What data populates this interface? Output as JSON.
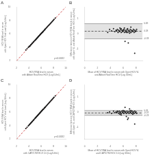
{
  "chart_data": [
    {
      "type": "scatter",
      "title": "A",
      "xlabel": "HCV RNA level in serum\nwith Abbott RealTime HCV (Log IU/mL)",
      "ylabel": "HCV RNA level in serum\nwith Xpert HCV Viral Load (Log IU/mL)",
      "xlim": [
        2,
        10
      ],
      "ylim": [
        2,
        10
      ],
      "xticks": [
        2,
        4,
        6,
        8,
        10
      ],
      "yticks": [
        2,
        4,
        6,
        8,
        10
      ],
      "grid": false,
      "annotation": "p<0.0001",
      "series": [
        {
          "type": "scatter",
          "color": "#1a1a1a",
          "marker": "circle",
          "x": [
            3.5,
            3.7,
            3.9,
            4.0,
            4.1,
            4.15,
            4.2,
            4.3,
            4.35,
            4.4,
            4.5,
            4.55,
            4.6,
            4.7,
            4.75,
            4.8,
            4.9,
            5.0,
            5.05,
            5.1,
            5.15,
            5.2,
            5.25,
            5.3,
            5.35,
            5.4,
            5.45,
            5.5,
            5.55,
            5.6,
            5.65,
            5.7,
            5.75,
            5.8,
            5.85,
            5.9,
            5.95,
            6.0,
            6.05,
            6.1,
            6.15,
            6.2,
            6.25,
            6.3,
            6.35,
            6.4,
            6.5,
            6.55,
            6.6,
            6.65,
            6.7,
            6.8,
            6.9,
            7.0,
            7.1,
            7.2,
            7.3,
            7.4,
            7.5,
            7.6,
            7.7,
            7.8,
            7.9,
            8.0,
            8.1,
            8.3
          ],
          "values": [
            3.6,
            3.8,
            4.0,
            4.1,
            4.2,
            4.15,
            4.25,
            4.35,
            4.4,
            4.45,
            4.55,
            4.6,
            4.65,
            4.75,
            4.8,
            4.85,
            4.95,
            5.05,
            5.1,
            5.15,
            5.2,
            5.25,
            5.3,
            5.35,
            5.4,
            5.45,
            5.5,
            5.55,
            5.6,
            5.65,
            5.7,
            5.75,
            5.8,
            5.85,
            5.9,
            5.95,
            6.0,
            6.05,
            6.1,
            6.15,
            6.2,
            6.25,
            6.3,
            6.35,
            6.4,
            6.45,
            6.55,
            6.6,
            6.65,
            6.7,
            6.75,
            6.85,
            6.95,
            7.05,
            7.15,
            7.25,
            7.35,
            7.45,
            7.55,
            7.65,
            7.75,
            7.85,
            7.95,
            8.05,
            8.15,
            8.35
          ]
        },
        {
          "type": "line",
          "color": "#cc3333",
          "line_style": "dashed",
          "x": [
            2,
            10
          ],
          "values": [
            2,
            10
          ]
        }
      ]
    },
    {
      "type": "scatter",
      "title": "B",
      "xlabel": "Mean of HCV RNA level in serum with Xpert HCV VL\nand Abbott RealTime HCV (Log IU/mL)",
      "ylabel": "Difference between HCV RNA levels in serum\nwith Xpert VL and Abbott RealTime HCV (Log IU/mL)",
      "xlim": [
        0,
        9
      ],
      "ylim": [
        -1.8,
        1.8
      ],
      "xticks": [
        0,
        2,
        4,
        6,
        8
      ],
      "yticks": [
        -1,
        0,
        1
      ],
      "grid": false,
      "band": {
        "values": [
          -0.33,
          0.69
        ],
        "color": "#cccccc"
      },
      "hlines": [
        {
          "value": 0.69,
          "label": "0.69",
          "color": "#000000",
          "line_style": "dotted"
        },
        {
          "value": 0.18,
          "label": "0.18",
          "color": "#000000",
          "line_style": "dashed"
        },
        {
          "value": -0.33,
          "label": "-0.33",
          "color": "#000000",
          "line_style": "dotted"
        }
      ],
      "series": [
        {
          "type": "scatter",
          "color": "#1a1a1a",
          "marker": "circle",
          "x": [
            3.6,
            3.9,
            4.2,
            4.5,
            4.7,
            4.9,
            5.0,
            5.1,
            5.2,
            5.3,
            5.4,
            5.5,
            5.6,
            5.7,
            5.8,
            5.9,
            6.0,
            6.1,
            6.2,
            6.3,
            6.4,
            6.5,
            6.6,
            6.7,
            6.8,
            6.9,
            7.0,
            7.1,
            7.2,
            7.3,
            7.4,
            7.5,
            7.6,
            7.7,
            7.8,
            7.9,
            8.0,
            8.1,
            5.5,
            5.7,
            6.0,
            6.2,
            6.5,
            6.7,
            7.0,
            7.2,
            7.5,
            7.8,
            6.3,
            6.8
          ],
          "values": [
            0.1,
            0.3,
            0.2,
            0.35,
            0.15,
            0.25,
            0.2,
            0.3,
            0.1,
            0.25,
            0.15,
            0.2,
            0.3,
            0.1,
            0.25,
            0.15,
            0.2,
            0.3,
            0.1,
            0.25,
            0.15,
            0.2,
            0.3,
            0.1,
            0.25,
            0.15,
            0.2,
            0.3,
            0.1,
            0.25,
            0.15,
            0.2,
            0.3,
            0.1,
            0.25,
            0.15,
            0.2,
            0.3,
            0.4,
            0.35,
            0.25,
            0.4,
            0.1,
            0.35,
            0.05,
            0.45,
            0.2,
            -1.3,
            -0.5,
            -0.6
          ]
        }
      ]
    },
    {
      "type": "scatter",
      "title": "C",
      "xlabel": "HCV RNA level in serum\nwith CAP/CTM HCV 2.0 (Log IU/mL)",
      "ylabel": "HCV RNA level in serum\nwith Xpert HCV Viral Load (Log IU/mL)",
      "xlim": [
        2,
        10
      ],
      "ylim": [
        2,
        10
      ],
      "xticks": [
        2,
        4,
        6,
        8,
        10
      ],
      "yticks": [
        2,
        4,
        6,
        8,
        10
      ],
      "grid": false,
      "annotation": "p<0.0001",
      "series": [
        {
          "type": "scatter",
          "color": "#1a1a1a",
          "marker": "circle",
          "x": [
            3.5,
            3.7,
            3.9,
            4.0,
            4.1,
            4.15,
            4.2,
            4.3,
            4.35,
            4.4,
            4.5,
            4.55,
            4.6,
            4.7,
            4.75,
            4.8,
            4.9,
            5.0,
            5.05,
            5.1,
            5.15,
            5.2,
            5.25,
            5.3,
            5.35,
            5.4,
            5.45,
            5.5,
            5.55,
            5.6,
            5.65,
            5.7,
            5.75,
            5.8,
            5.85,
            5.9,
            5.95,
            6.0,
            6.05,
            6.1,
            6.15,
            6.2,
            6.25,
            6.3,
            6.35,
            6.4,
            6.5,
            6.55,
            6.6,
            6.65,
            6.7,
            6.8,
            6.9,
            7.0,
            7.1,
            7.2,
            7.3,
            7.4,
            7.5,
            7.6,
            7.7,
            7.8,
            7.9,
            8.0,
            8.1,
            8.3
          ],
          "values": [
            3.55,
            3.75,
            3.95,
            4.05,
            4.15,
            4.2,
            4.25,
            4.35,
            4.4,
            4.45,
            4.55,
            4.6,
            4.65,
            4.75,
            4.8,
            4.85,
            4.95,
            5.05,
            5.1,
            5.15,
            5.2,
            5.25,
            5.3,
            5.35,
            5.4,
            5.45,
            5.5,
            5.55,
            5.6,
            5.65,
            5.7,
            5.75,
            5.8,
            5.85,
            5.9,
            5.95,
            6.0,
            6.05,
            6.1,
            6.15,
            6.2,
            6.25,
            6.3,
            6.35,
            6.4,
            6.45,
            6.55,
            6.6,
            6.65,
            6.7,
            6.75,
            6.85,
            6.95,
            7.05,
            7.15,
            7.25,
            7.35,
            7.45,
            7.55,
            7.65,
            7.75,
            7.85,
            7.95,
            8.05,
            8.15,
            8.35
          ]
        },
        {
          "type": "line",
          "color": "#cc3333",
          "line_style": "dashed",
          "x": [
            2,
            10
          ],
          "values": [
            2,
            10
          ]
        }
      ]
    },
    {
      "type": "scatter",
      "title": "D",
      "xlabel": "Mean of HCV RNA level in serum with Xpert HCV VL\nand CAP/CTM HCV 2.0 (Log IU/mL)",
      "ylabel": "Difference between HCV RNA levels in serum\nwith Xpert VL and CAP/CTM HCV (Log IU/mL)",
      "xlim": [
        0,
        9
      ],
      "ylim": [
        -1.8,
        1.8
      ],
      "xticks": [
        0,
        2,
        4,
        6,
        8
      ],
      "yticks": [
        -1,
        0,
        1
      ],
      "grid": false,
      "band": {
        "values": [
          -0.23,
          0.09
        ],
        "color": "#cccccc"
      },
      "hlines": [
        {
          "value": 0.09,
          "label": "0.09",
          "color": "#000000",
          "line_style": "dotted"
        },
        {
          "value": -0.07,
          "label": "-0.07",
          "color": "#000000",
          "line_style": "dashed"
        },
        {
          "value": -0.23,
          "label": "-0.23",
          "color": "#000000",
          "line_style": "dotted"
        }
      ],
      "series": [
        {
          "type": "scatter",
          "color": "#1a1a1a",
          "marker": "circle",
          "x": [
            3.6,
            3.9,
            4.2,
            4.5,
            4.7,
            4.9,
            5.0,
            5.1,
            5.2,
            5.3,
            5.4,
            5.5,
            5.6,
            5.7,
            5.8,
            5.9,
            6.0,
            6.1,
            6.2,
            6.3,
            6.4,
            6.5,
            6.6,
            6.7,
            6.8,
            6.9,
            7.0,
            7.1,
            7.2,
            7.3,
            7.4,
            7.5,
            7.6,
            7.7,
            7.8,
            7.9,
            8.0,
            8.1,
            5.5,
            5.7,
            6.0,
            6.2,
            6.5,
            6.7,
            7.0,
            7.2,
            7.5,
            7.8,
            6.3,
            6.8
          ],
          "values": [
            -0.05,
            0.0,
            -0.1,
            0.05,
            -0.05,
            0.0,
            -0.05,
            0.05,
            0.0,
            -0.1,
            0.05,
            -0.05,
            0.0,
            -0.1,
            0.05,
            -0.05,
            0.0,
            -0.1,
            0.05,
            -0.05,
            0.0,
            -0.1,
            0.05,
            -0.05,
            0.0,
            -0.1,
            0.05,
            -0.05,
            0.0,
            -0.1,
            0.05,
            -0.05,
            0.0,
            -0.1,
            0.05,
            -0.05,
            0.0,
            -0.1,
            -0.15,
            -0.2,
            0.1,
            0.05,
            -0.3,
            -0.5,
            0.2,
            0.1,
            -0.15,
            -0.8,
            0.3,
            -0.4
          ]
        }
      ]
    }
  ]
}
